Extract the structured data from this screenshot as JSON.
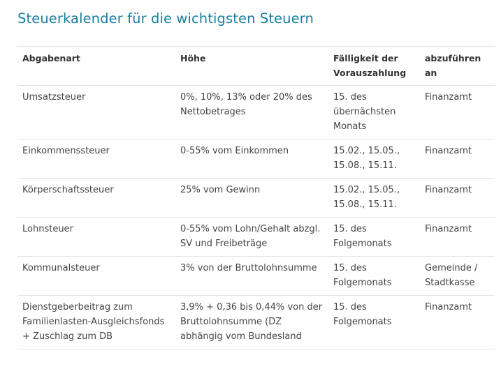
{
  "title": "Steuerkalender für die wichtigsten Steuern",
  "table": {
    "headers": [
      "Abgabenart",
      "Höhe",
      "Fälligkeit der Vorauszahlung",
      "abzuführen an"
    ],
    "rows": [
      [
        "Umsatzsteuer",
        "0%, 10%, 13% oder 20% des Nettobetrages",
        "15. des übernächsten Monats",
        "Finanzamt"
      ],
      [
        "Einkommenssteuer",
        "0-55% vom Einkommen",
        "15.02., 15.05., 15.08., 15.11.",
        "Finanzamt"
      ],
      [
        "Körperschaftssteuer",
        "25% vom Gewinn",
        "15.02., 15.05., 15.08., 15.11.",
        "Finanzamt"
      ],
      [
        "Lohnsteuer",
        "0-55% vom Lohn/Gehalt abzgl. SV und Freibeträge",
        "15. des Folgemonats",
        "Finanzamt"
      ],
      [
        "Kommunalsteuer",
        "3% von der Bruttolohnsumme",
        "15. des Folgemonats",
        "Gemeinde / Stadtkasse"
      ],
      [
        "Dienstgeberbeitrag zum Familienlasten-Ausgleichsfonds + Zuschlag zum DB",
        "3,9% + 0,36 bis 0,44% von der Bruttolohnsumme (DZ abhängig vom Bundesland",
        "15. des Folgemonats",
        "Finanzamt"
      ]
    ]
  },
  "colors": {
    "title": "#1a7ea0",
    "text": "#444444",
    "border": "#e3e3e3"
  }
}
